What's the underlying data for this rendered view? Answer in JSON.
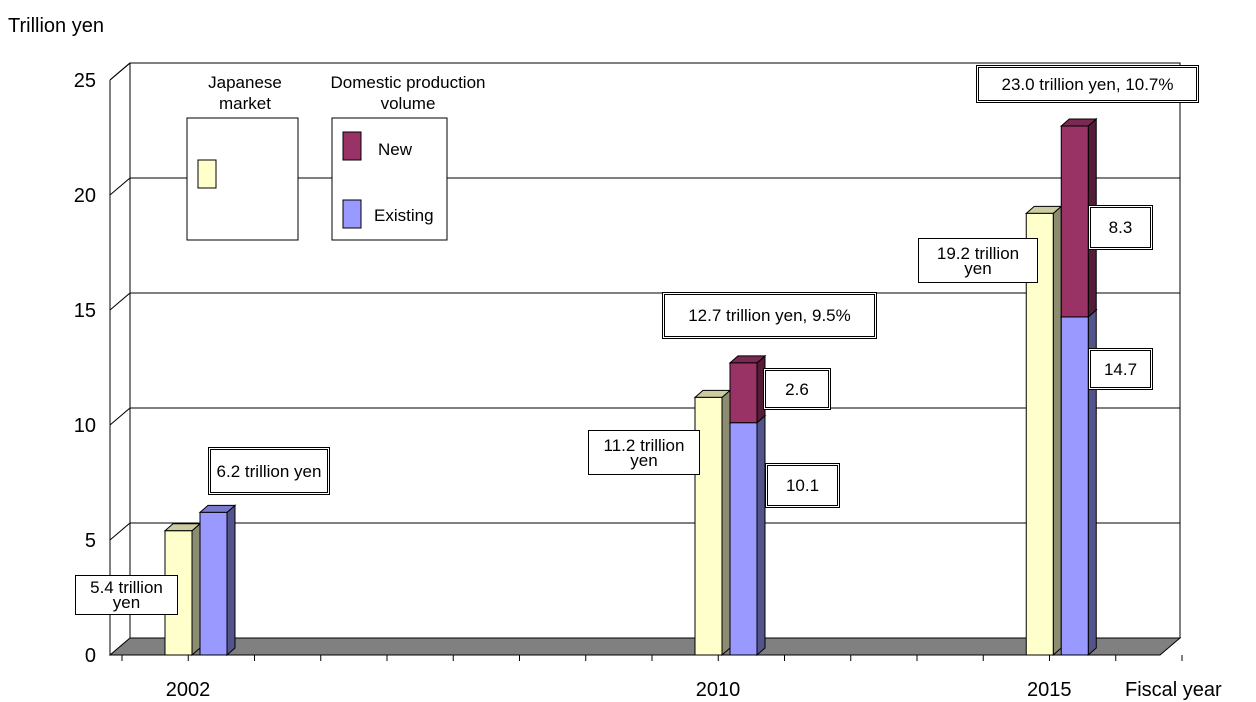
{
  "chart_data": {
    "type": "bar3d",
    "y_label": "Trillion yen",
    "x_label": "Fiscal year",
    "categories": [
      "2002",
      "2010",
      "2015"
    ],
    "legend_title": "Domestic production volume",
    "series": [
      {
        "name": "Japanese market",
        "color": "#ffffcc",
        "values": [
          5.4,
          11.2,
          19.2
        ],
        "value_labels": [
          "5.4 trillion yen",
          "11.2 trillion yen",
          "19.2 trillion yen"
        ]
      },
      {
        "name": "Existing",
        "color": "#9999ff",
        "values": [
          6.2,
          10.1,
          14.7
        ],
        "value_labels": [
          "6.2 trillion yen",
          "10.1",
          "14.7"
        ]
      },
      {
        "name": "New",
        "color": "#993366",
        "values": [
          null,
          2.6,
          8.3
        ],
        "value_labels": [
          null,
          "2.6",
          "8.3"
        ]
      }
    ],
    "annotations": [
      "12.7 trillion yen, 9.5%",
      "23.0 trillion yen, 10.7%"
    ],
    "ylim": [
      0,
      25
    ],
    "yticks": [
      0,
      5,
      10,
      15,
      20,
      25
    ],
    "grid": true
  }
}
